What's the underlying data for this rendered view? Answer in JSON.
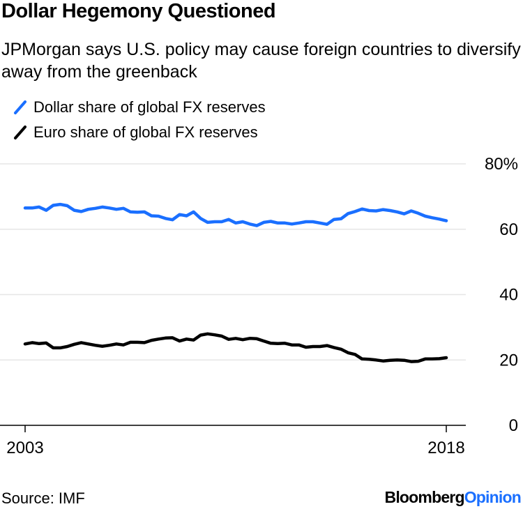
{
  "title": "Dollar Hegemony Questioned",
  "subtitle": "JPMorgan says U.S. policy may cause foreign countries to diversify away from the greenback",
  "legend": [
    {
      "label": "Dollar share of global FX reserves",
      "color": "#1a6fff",
      "icon": "diagonal-line-icon"
    },
    {
      "label": "Euro share of global FX reserves",
      "color": "#000000",
      "icon": "diagonal-line-icon"
    }
  ],
  "source": "Source: IMF",
  "brand": {
    "part1": "Bloomberg",
    "part2": "Opinion",
    "color2": "#1a6fff"
  },
  "chart_data": {
    "type": "line",
    "title": "Dollar Hegemony Questioned",
    "xlabel": "",
    "ylabel": "",
    "x_start": 2003,
    "x_end": 2018,
    "x_tick_labels": [
      "2003",
      "2018"
    ],
    "y_ticks": [
      0,
      20,
      40,
      60,
      80
    ],
    "y_tick_labels": [
      "0",
      "20",
      "40",
      "60",
      "80%"
    ],
    "ylim": [
      0,
      80
    ],
    "grid": true,
    "series": [
      {
        "name": "Dollar share of global FX reserves",
        "color": "#1a6fff",
        "values": [
          66.5,
          66.5,
          66.8,
          65.8,
          67.3,
          67.6,
          67.2,
          65.8,
          65.4,
          66.1,
          66.4,
          66.8,
          66.5,
          66.1,
          66.4,
          65.3,
          65.2,
          65.3,
          64.1,
          64.0,
          63.3,
          62.9,
          64.5,
          64.1,
          65.3,
          63.3,
          62.1,
          62.3,
          62.3,
          63.0,
          61.9,
          62.3,
          61.6,
          61.1,
          62.1,
          62.4,
          61.9,
          61.9,
          61.6,
          61.9,
          62.3,
          62.3,
          61.9,
          61.5,
          63.0,
          63.2,
          64.8,
          65.4,
          66.2,
          65.7,
          65.6,
          66.0,
          65.7,
          65.3,
          64.7,
          65.6,
          64.9,
          64.0,
          63.5,
          63.1,
          62.6
        ]
      },
      {
        "name": "Euro share of global FX reserves",
        "color": "#000000",
        "values": [
          24.9,
          25.3,
          25.0,
          25.2,
          23.7,
          23.7,
          24.1,
          24.8,
          25.3,
          24.9,
          24.5,
          24.2,
          24.5,
          24.9,
          24.6,
          25.4,
          25.4,
          25.3,
          26.0,
          26.4,
          26.7,
          26.8,
          25.8,
          26.4,
          26.1,
          27.6,
          28.0,
          27.7,
          27.3,
          26.3,
          26.6,
          26.2,
          26.6,
          26.5,
          25.8,
          25.1,
          25.0,
          25.1,
          24.6,
          24.6,
          23.9,
          24.1,
          24.1,
          24.4,
          23.8,
          23.3,
          22.2,
          21.7,
          20.3,
          20.2,
          20.0,
          19.7,
          19.9,
          20.0,
          19.9,
          19.5,
          19.6,
          20.3,
          20.3,
          20.4,
          20.7
        ]
      }
    ]
  }
}
